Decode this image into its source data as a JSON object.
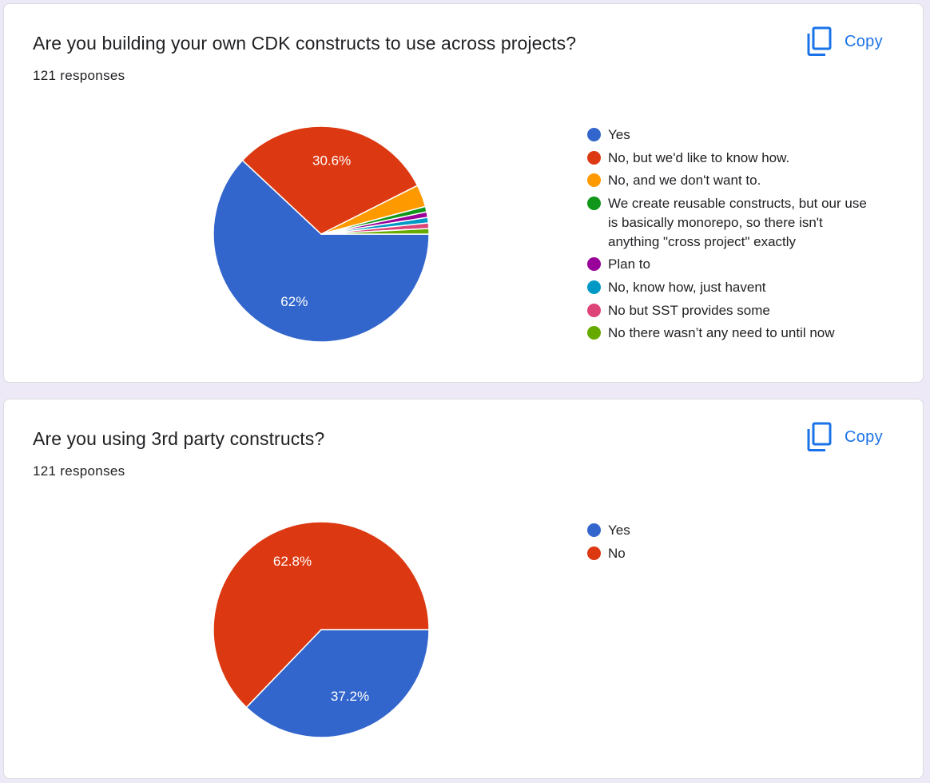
{
  "questions": [
    {
      "title": "Are you building your own CDK constructs to use across projects?",
      "responses": "121 responses",
      "copy_label": "Copy",
      "legend": [
        {
          "label": "Yes",
          "color": "#3366cc"
        },
        {
          "label": "No, but we'd like to know how.",
          "color": "#dc3912"
        },
        {
          "label": "No, and we don't want to.",
          "color": "#ff9900"
        },
        {
          "label": "We create reusable constructs, but our use is basically monorepo, so there isn't anything \"cross project\" exactly",
          "color": "#109618"
        },
        {
          "label": "Plan to",
          "color": "#990099"
        },
        {
          "label": "No, know how, just havent",
          "color": "#0099c6"
        },
        {
          "label": "No but SST provides some",
          "color": "#dd4477"
        },
        {
          "label": "No there wasn’t any need to until now",
          "color": "#66aa00"
        }
      ]
    },
    {
      "title": "Are you using 3rd party constructs?",
      "responses": "121 responses",
      "copy_label": "Copy",
      "legend": [
        {
          "label": "Yes",
          "color": "#3366cc"
        },
        {
          "label": "No",
          "color": "#dc3912"
        }
      ]
    }
  ],
  "chart_data": [
    {
      "type": "pie",
      "categories": [
        "Yes",
        "No, but we'd like to know how.",
        "No, and we don't want to.",
        "We create reusable constructs, but our use is basically monorepo, so there isn't anything \"cross project\" exactly",
        "Plan to",
        "No, know how, just havent",
        "No but SST provides some",
        "No there wasn’t any need to until now"
      ],
      "values": [
        75,
        37,
        4,
        1,
        1,
        1,
        1,
        1
      ],
      "slice_labels": [
        "62%",
        "30.6%",
        "",
        "",
        "",
        "",
        "",
        ""
      ],
      "colors": [
        "#3366cc",
        "#dc3912",
        "#ff9900",
        "#109618",
        "#990099",
        "#0099c6",
        "#dd4477",
        "#66aa00"
      ],
      "legend_position": "right",
      "title": ""
    },
    {
      "type": "pie",
      "categories": [
        "Yes",
        "No"
      ],
      "values": [
        45,
        76
      ],
      "slice_labels": [
        "37.2%",
        "62.8%"
      ],
      "colors": [
        "#3366cc",
        "#dc3912"
      ],
      "legend_position": "right",
      "title": ""
    }
  ]
}
